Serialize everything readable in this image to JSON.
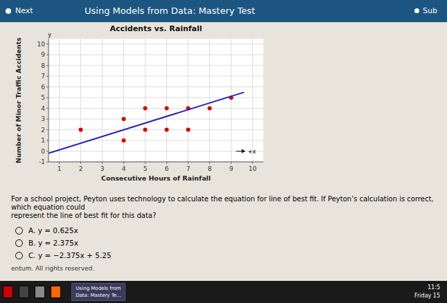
{
  "chart_data": {
    "type": "scatter",
    "title": "Accidents vs. Rainfall",
    "x_label": "Consecutive Hours of Rainfall",
    "y_label": "Number of Minor Traffic Accidents",
    "xlim": [
      0.5,
      10.5
    ],
    "ylim": [
      -1,
      10.5
    ],
    "xticks": [
      1,
      2,
      3,
      4,
      5,
      6,
      7,
      8,
      9,
      10
    ],
    "yticks": [
      -1,
      0,
      1,
      2,
      3,
      4,
      5,
      6,
      7,
      8,
      9,
      10
    ],
    "grid": true,
    "series": [
      {
        "type": "scatter",
        "color": "#dd0000",
        "x": [
          2,
          4,
          4,
          5,
          5,
          6,
          6,
          7,
          7,
          8,
          9
        ],
        "values": [
          2,
          1,
          3,
          4,
          2,
          4,
          2,
          4,
          2,
          4,
          5
        ]
      },
      {
        "type": "line",
        "color": "#2222bb",
        "x": [
          0.5,
          9.6
        ],
        "values": [
          -0.1875,
          5.5
        ]
      }
    ],
    "annotations": [
      {
        "text": "+x",
        "x": 9.75,
        "y": 0
      },
      {
        "text": "y",
        "x": 0.55,
        "y": 10.7
      }
    ]
  },
  "page": {
    "header": "Using Models from Data: Mastery Test",
    "nav_left": "Next",
    "nav_right": "Sub",
    "question": [
      "For a school project, Peyton uses technology to calculate the equation for line of best fit. If Peyton’s calculation is correct, which equation could",
      "represent the line of best fit for this data?"
    ],
    "options": [
      "A.  y = 0.625x",
      "B.  y = 2.375x",
      "C.  y = −2.375x + 5.25"
    ],
    "footer": "entum. All rights reserved.",
    "taskbar": [
      "Using Models from",
      "Data: Mastery Te...",
      "11:5",
      "Friday 15"
    ]
  }
}
